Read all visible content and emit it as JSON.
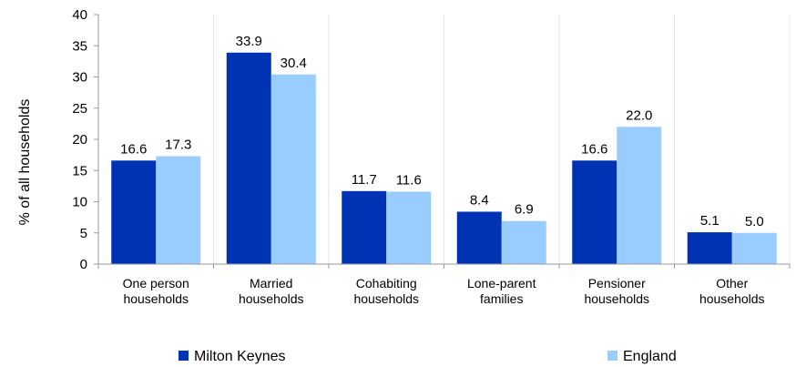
{
  "chart_data": {
    "type": "bar",
    "title": "",
    "xlabel": "",
    "ylabel": "% of all households",
    "ylim": [
      0,
      40
    ],
    "yticks": [
      "0",
      "5",
      "10",
      "15",
      "20",
      "25",
      "30",
      "35",
      "40"
    ],
    "categories": [
      [
        "One person",
        "households"
      ],
      [
        "Married",
        "households"
      ],
      [
        "Cohabiting",
        "households"
      ],
      [
        "Lone-parent",
        "families"
      ],
      [
        "Pensioner",
        "households"
      ],
      [
        "Other",
        "households"
      ]
    ],
    "series": [
      {
        "name": "Milton Keynes",
        "color": "#0033B4",
        "values": [
          16.6,
          33.9,
          11.7,
          8.4,
          16.6,
          5.1
        ],
        "labels": [
          "16.6",
          "33.9",
          "11.7",
          "8.4",
          "16.6",
          "5.1"
        ]
      },
      {
        "name": "England",
        "color": "#99CCFF",
        "values": [
          17.3,
          30.4,
          11.6,
          6.9,
          22.0,
          5.0
        ],
        "labels": [
          "17.3",
          "30.4",
          "11.6",
          "6.9",
          "22.0",
          "5.0"
        ]
      }
    ],
    "grid": {
      "vertical": true,
      "horizontal": false
    },
    "legend": {
      "position": "bottom"
    }
  }
}
